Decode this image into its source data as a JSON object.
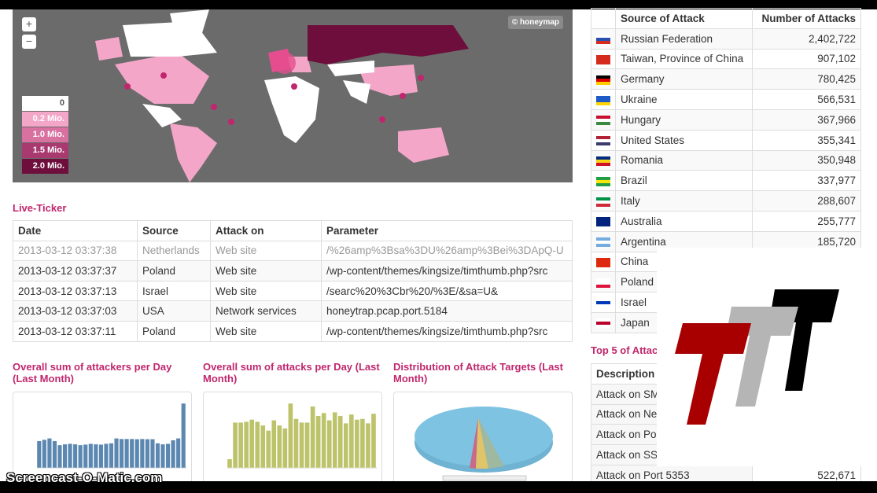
{
  "map": {
    "zoom_in": "+",
    "zoom_out": "−",
    "attribution": "© honeymap",
    "legend": [
      {
        "label": "0",
        "color": "#ffffff"
      },
      {
        "label": "0.2 Mio.",
        "color": "#f4a6c8"
      },
      {
        "label": "1.0 Mio.",
        "color": "#d870a0"
      },
      {
        "label": "1.5 Mio.",
        "color": "#a83a70"
      },
      {
        "label": "2.0 Mio.",
        "color": "#6e0e3c"
      }
    ]
  },
  "ticker": {
    "title": "Live-Ticker",
    "headers": [
      "Date",
      "Source",
      "Attack on",
      "Parameter"
    ],
    "rows": [
      [
        "2013-03-12 03:37:38",
        "Netherlands",
        "Web site",
        "/%26amp%3Bsa%3DU%26amp%3Bei%3DApQ-U"
      ],
      [
        "2013-03-12 03:37:37",
        "Poland",
        "Web site",
        "/wp-content/themes/kingsize/timthumb.php?src"
      ],
      [
        "2013-03-12 03:37:13",
        "Israel",
        "Web site",
        "/searc%20%3Cbr%20/%3E/&sa=U&"
      ],
      [
        "2013-03-12 03:37:03",
        "USA",
        "Network services",
        "honeytrap.pcap.port.5184"
      ],
      [
        "2013-03-12 03:37:11",
        "Poland",
        "Web site",
        "/wp-content/themes/kingsize/timthumb.php?src"
      ]
    ]
  },
  "charts": {
    "attackers_title": "Overall sum of attackers per Day (Last Month)",
    "attacks_title": "Overall sum of attacks per Day (Last Month)",
    "targets_title": "Distribution of Attack Targets (Last Month)"
  },
  "chart_data": [
    {
      "type": "bar",
      "title": "Overall sum of attackers per Day (Last Month)",
      "color": "#5b87b0",
      "values": [
        100,
        105,
        110,
        100,
        85,
        88,
        90,
        88,
        85,
        87,
        90,
        88,
        87,
        90,
        92,
        110,
        108,
        108,
        108,
        107,
        108,
        107,
        107,
        92,
        88,
        90,
        103,
        110,
        240
      ]
    },
    {
      "type": "bar",
      "title": "Overall sum of attacks per Day (Last Month)",
      "color": "#bcc36a",
      "values": [
        60,
        310,
        310,
        315,
        330,
        315,
        290,
        255,
        325,
        290,
        270,
        440,
        335,
        310,
        310,
        420,
        355,
        375,
        325,
        380,
        355,
        305,
        365,
        330,
        335,
        305,
        370
      ]
    },
    {
      "type": "pie",
      "title": "Distribution of Attack Targets (Last Month)",
      "colors": [
        "#7fc3e3",
        "#e0c46a",
        "#c86a8a",
        "#9fb8a0"
      ]
    }
  ],
  "sources": {
    "headers": [
      "Source of Attack",
      "Number of Attacks"
    ],
    "rows": [
      {
        "country": "Russian Federation",
        "count": "2,402,722",
        "flag": [
          "#fff",
          "#2a4fb0",
          "#d52b1e"
        ]
      },
      {
        "country": "Taiwan, Province of China",
        "count": "907,102",
        "flag": [
          "#d52b1e",
          "#d52b1e",
          "#d52b1e"
        ]
      },
      {
        "country": "Germany",
        "count": "780,425",
        "flag": [
          "#000",
          "#d00",
          "#fc0"
        ]
      },
      {
        "country": "Ukraine",
        "count": "566,531",
        "flag": [
          "#1e5bc6",
          "#1e5bc6",
          "#ffd500"
        ]
      },
      {
        "country": "Hungary",
        "count": "367,966",
        "flag": [
          "#c8102e",
          "#fff",
          "#3c8a3f"
        ]
      },
      {
        "country": "United States",
        "count": "355,341",
        "flag": [
          "#b22234",
          "#fff",
          "#3c3b6e"
        ]
      },
      {
        "country": "Romania",
        "count": "350,948",
        "flag": [
          "#002b7f",
          "#fcd116",
          "#ce1126"
        ]
      },
      {
        "country": "Brazil",
        "count": "337,977",
        "flag": [
          "#229e45",
          "#f8e509",
          "#229e45"
        ]
      },
      {
        "country": "Italy",
        "count": "288,607",
        "flag": [
          "#009246",
          "#fff",
          "#ce2b37"
        ]
      },
      {
        "country": "Australia",
        "count": "255,777",
        "flag": [
          "#00247d",
          "#00247d",
          "#00247d"
        ]
      },
      {
        "country": "Argentina",
        "count": "185,720",
        "flag": [
          "#74acdf",
          "#fff",
          "#74acdf"
        ]
      },
      {
        "country": "China",
        "count": "",
        "flag": [
          "#de2910",
          "#de2910",
          "#de2910"
        ]
      },
      {
        "country": "Poland",
        "count": "",
        "flag": [
          "#fff",
          "#fff",
          "#dc143c"
        ]
      },
      {
        "country": "Israel",
        "count": "",
        "flag": [
          "#fff",
          "#0038b8",
          "#fff"
        ]
      },
      {
        "country": "Japan",
        "count": "",
        "flag": [
          "#fff",
          "#bc002d",
          "#fff"
        ]
      }
    ]
  },
  "top5": {
    "title": "Top 5 of Attac",
    "header": "Description",
    "rows": [
      {
        "desc": "Attack on SM",
        "count": ""
      },
      {
        "desc": "Attack on Ne",
        "count": ""
      },
      {
        "desc": "Attack on Po",
        "count": ""
      },
      {
        "desc": "Attack on SS",
        "count": ""
      },
      {
        "desc": "Attack on Port 5353",
        "count": "522,671"
      }
    ]
  },
  "logo": {
    "text": "TTT",
    "colors": [
      "#a80000",
      "#b5b5b5",
      "#000000"
    ]
  },
  "watermark": "Screencast-O-Matic.com"
}
